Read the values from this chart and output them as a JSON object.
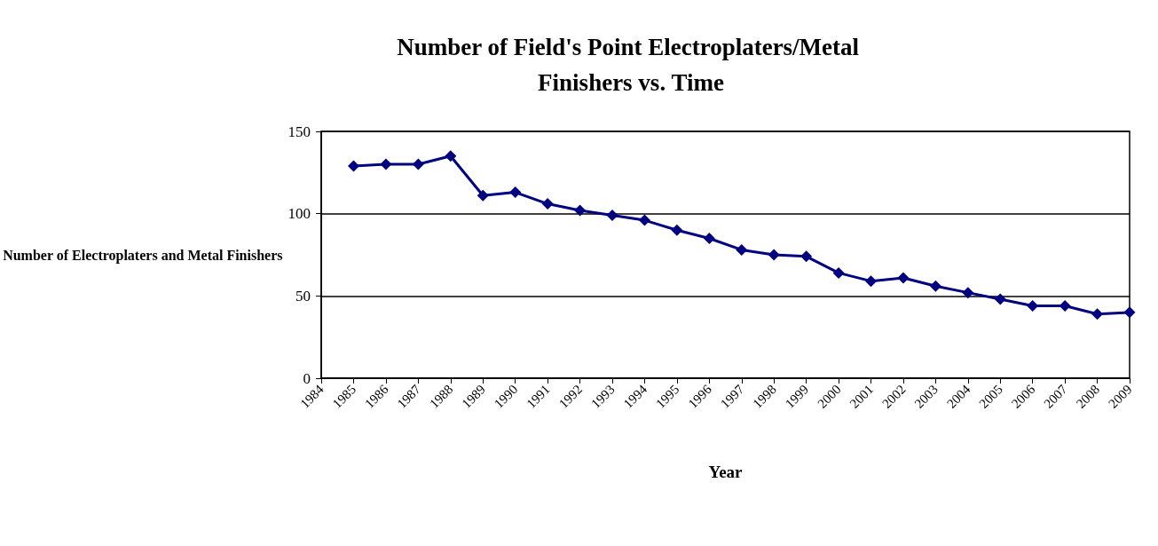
{
  "chart_data": {
    "type": "line",
    "title": "Number of Field's Point Electroplaters/Metal Finishers vs. Time",
    "xlabel": "Year",
    "ylabel": "Number of Electroplaters and Metal Finishers",
    "x": [
      1985,
      1986,
      1987,
      1988,
      1989,
      1990,
      1991,
      1992,
      1993,
      1994,
      1995,
      1996,
      1997,
      1998,
      1999,
      2000,
      2001,
      2002,
      2003,
      2004,
      2005,
      2006,
      2007,
      2008,
      2009
    ],
    "series": [
      {
        "color": "#000080",
        "values": [
          129,
          130,
          130,
          135,
          111,
          113,
          106,
          102,
          99,
          96,
          90,
          85,
          78,
          75,
          74,
          64,
          59,
          61,
          56,
          52,
          48,
          44,
          44,
          39,
          40
        ]
      }
    ],
    "xlim": [
      1984,
      2009
    ],
    "xticks": [
      1984,
      1985,
      1986,
      1987,
      1988,
      1989,
      1990,
      1991,
      1992,
      1993,
      1994,
      1995,
      1996,
      1997,
      1998,
      1999,
      2000,
      2001,
      2002,
      2003,
      2004,
      2005,
      2006,
      2007,
      2008,
      2009
    ],
    "ylim": [
      0,
      150
    ],
    "yticks": [
      0,
      50,
      100,
      150
    ],
    "grid": "y",
    "marker": "diamond",
    "line_style": "solid"
  }
}
